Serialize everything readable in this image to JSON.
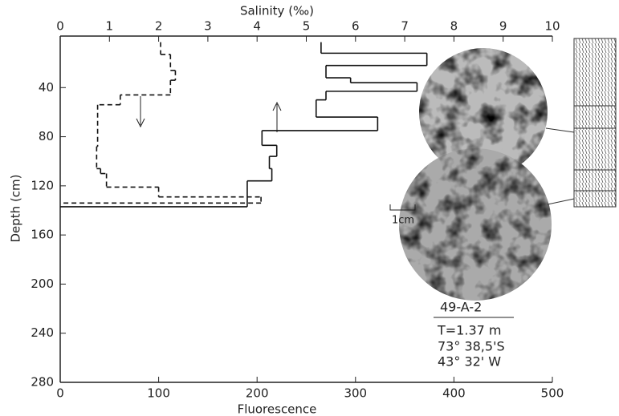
{
  "chart_data": {
    "type": "step",
    "x_label": "Fluorescence",
    "x2_label": "Salinity (‰)",
    "y_label": "Depth (cm)",
    "xlim": [
      0,
      500
    ],
    "xticks": [
      0,
      100,
      200,
      300,
      400,
      500
    ],
    "x2lim": [
      0,
      10
    ],
    "x2ticks": [
      0,
      1,
      2,
      3,
      4,
      5,
      6,
      7,
      8,
      9,
      10
    ],
    "ylim": [
      0,
      280
    ],
    "yticks": [
      40,
      80,
      120,
      160,
      200,
      240,
      280
    ],
    "y_inverted": true,
    "color": "#111111",
    "series": [
      {
        "axis": "x2",
        "style": "solid",
        "depths": [
          3,
          12,
          22,
          32,
          36,
          43,
          50,
          64,
          75,
          87,
          96,
          106,
          116,
          137
        ],
        "values": [
          5.3,
          7.45,
          5.4,
          5.9,
          7.25,
          5.4,
          5.2,
          6.45,
          4.1,
          4.4,
          4.25,
          4.3,
          3.8
        ]
      },
      {
        "axis": "x",
        "style": "dashed",
        "depths": [
          3,
          13,
          26,
          34,
          46,
          54,
          88,
          106,
          110,
          121,
          129,
          134
        ],
        "values": [
          102,
          112,
          117,
          112,
          61,
          38,
          37,
          41,
          47,
          100,
          204
        ]
      }
    ],
    "annotations": {
      "scale": "1cm",
      "sample": "49-A-2",
      "thickness": "T=1.37 m",
      "latitude": "73° 38,5'S",
      "longitude": "43° 32' W"
    }
  }
}
